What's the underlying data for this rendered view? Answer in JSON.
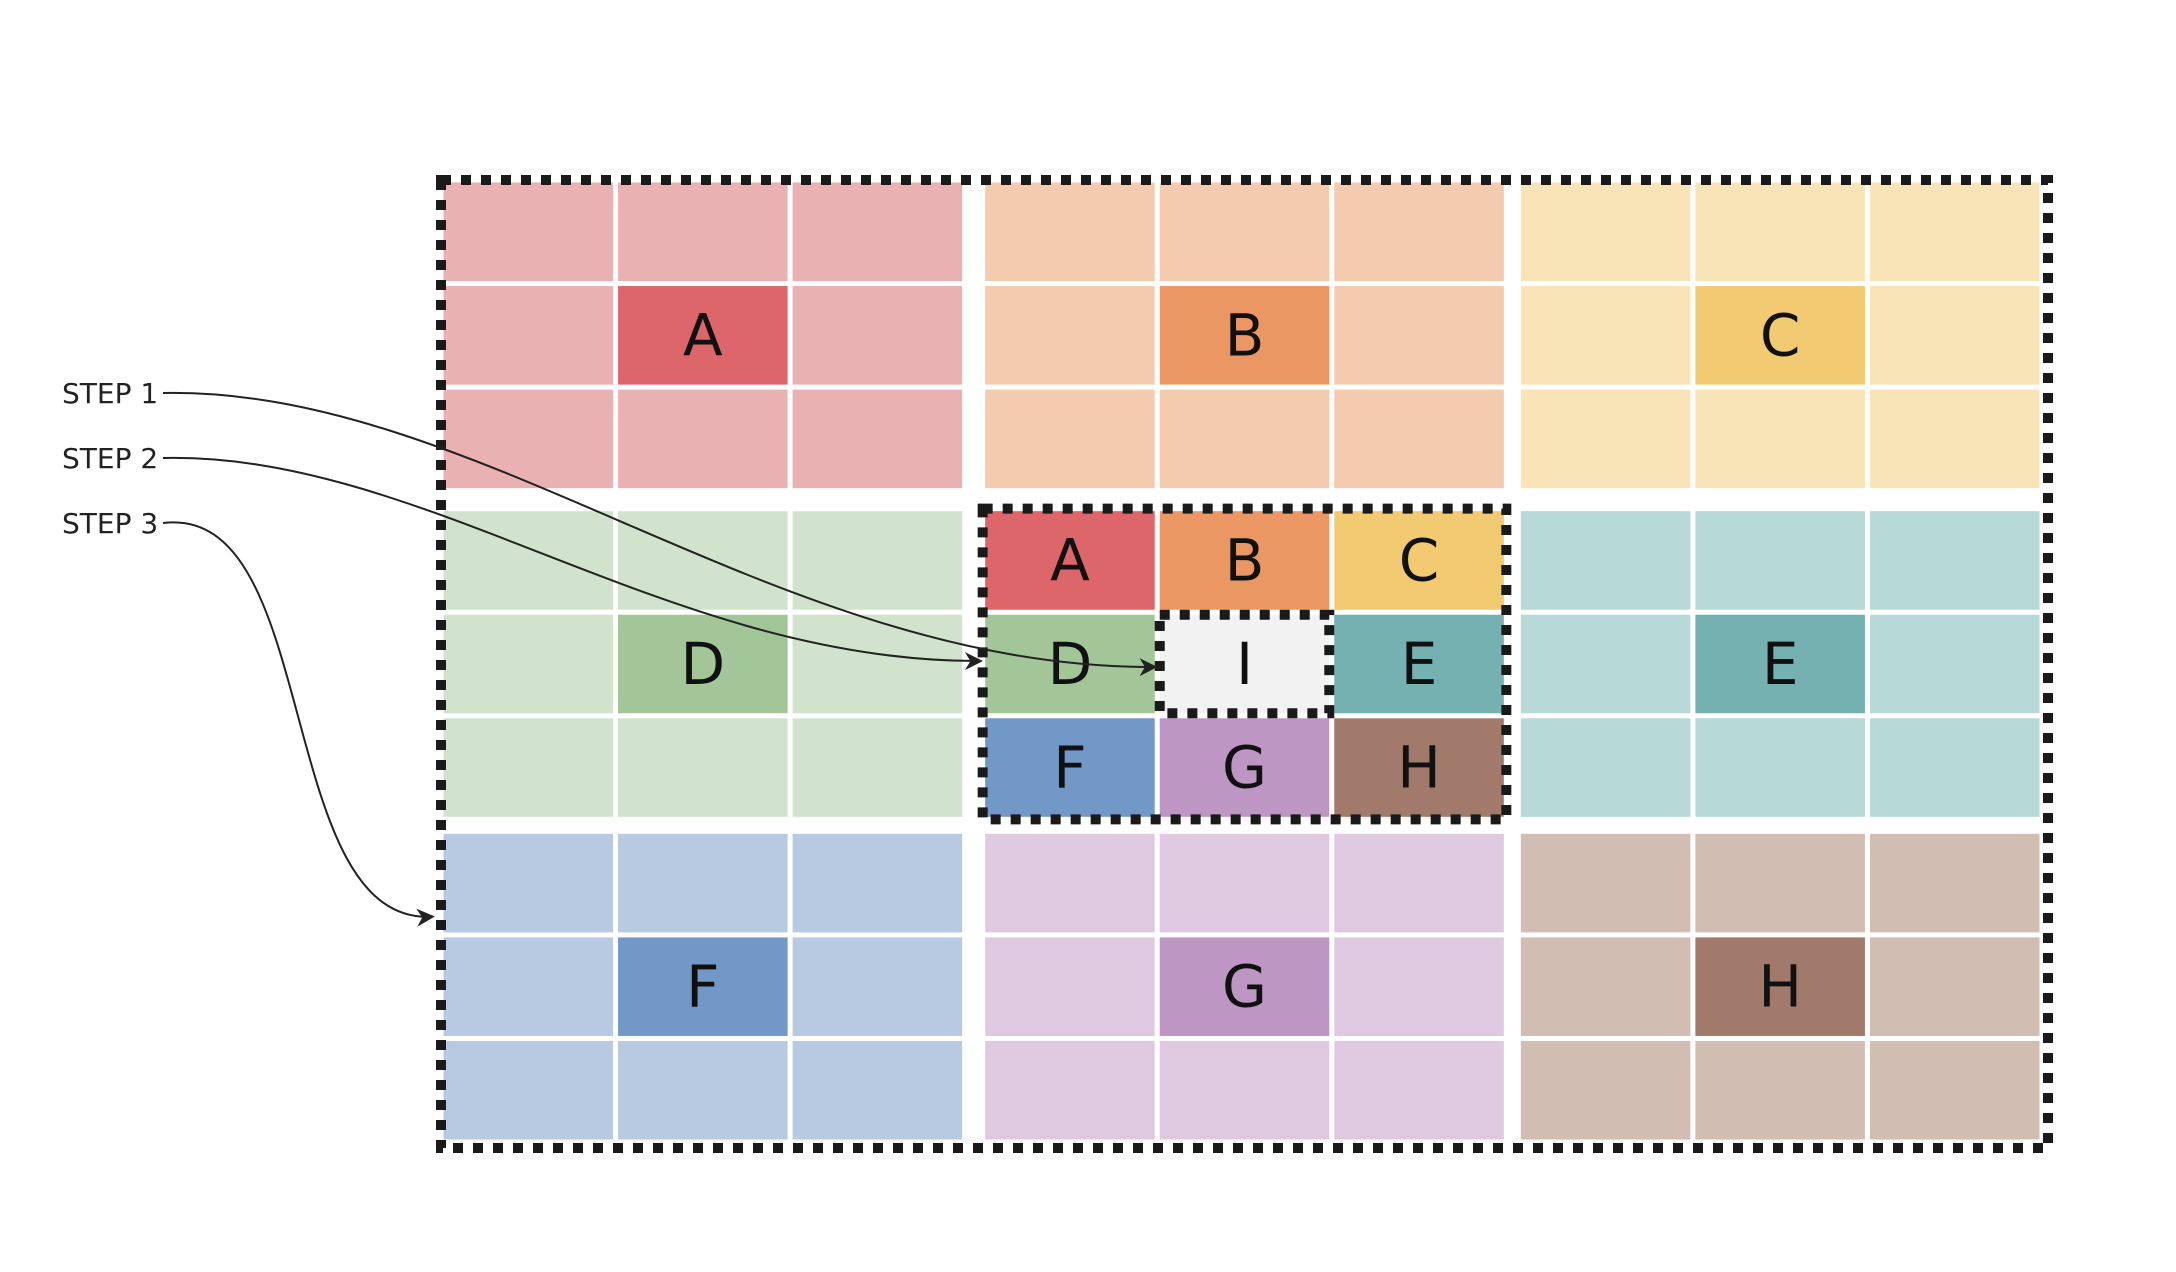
{
  "steps": [
    {
      "label": "STEP 1",
      "target": "center-I"
    },
    {
      "label": "STEP 2",
      "target": "center-D"
    },
    {
      "label": "STEP 3",
      "target": "outer-grid"
    }
  ],
  "blocks": [
    {
      "key": "A",
      "label": "A",
      "light": "#eab1b3",
      "dark": "#dd666a"
    },
    {
      "key": "B",
      "label": "B",
      "light": "#f4cbaf",
      "dark": "#eb9763"
    },
    {
      "key": "C",
      "label": "C",
      "light": "#f9e4b7",
      "dark": "#f2ca72"
    },
    {
      "key": "D",
      "label": "D",
      "light": "#d1e3cc",
      "dark": "#a3c699"
    },
    {
      "key": "E",
      "label": "E",
      "light": "#b7d9d8",
      "dark": "#75b1b1"
    },
    {
      "key": "F",
      "label": "F",
      "light": "#b7cae2",
      "dark": "#7298c8"
    },
    {
      "key": "G",
      "label": "G",
      "light": "#dfc9e0",
      "dark": "#bd96c3"
    },
    {
      "key": "H",
      "label": "H",
      "light": "#d2bdb3",
      "dark": "#a17a6b"
    }
  ],
  "center": {
    "cells": [
      {
        "key": "A",
        "label": "A"
      },
      {
        "key": "B",
        "label": "B"
      },
      {
        "key": "C",
        "label": "C"
      },
      {
        "key": "D",
        "label": "D"
      },
      {
        "key": "I",
        "label": "I",
        "fill": "#f2f2f2"
      },
      {
        "key": "E",
        "label": "E"
      },
      {
        "key": "F",
        "label": "F"
      },
      {
        "key": "G",
        "label": "G"
      },
      {
        "key": "H",
        "label": "H"
      }
    ]
  },
  "colors": {
    "border": "#1a1a1a",
    "arrow": "#222222",
    "gap": "#ffffff"
  }
}
